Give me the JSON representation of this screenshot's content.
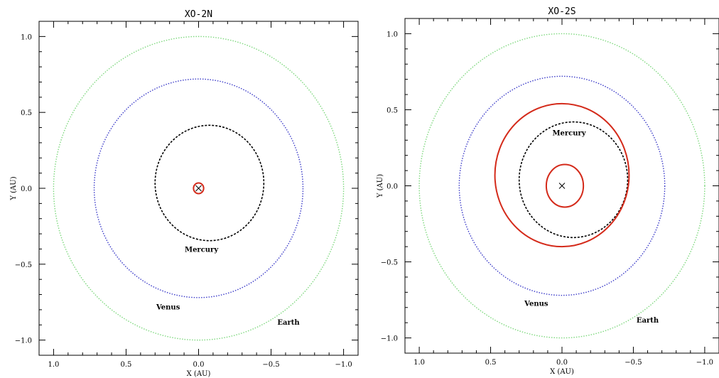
{
  "chart_data": [
    {
      "type": "scatter",
      "title": "XO-2N",
      "xlabel": "X (AU)",
      "ylabel": "Y (AU)",
      "xlim": [
        1.1,
        -1.1
      ],
      "ylim": [
        -1.1,
        1.1
      ],
      "xticks": [
        "1.0",
        "0.5",
        "0.0",
        "−0.5",
        "−1.0"
      ],
      "yticks": [
        "−1.0",
        "−0.5",
        "0.0",
        "0.5",
        "1.0"
      ],
      "star_marker": {
        "x": 0.0,
        "y": 0.0
      },
      "orbits": [
        {
          "name": "Earth",
          "color": "#7ed87e",
          "style": "dotted",
          "cx": 0.0,
          "cy": 0.0,
          "rx": 1.0,
          "ry": 1.0
        },
        {
          "name": "Venus",
          "color": "#3a3ac8",
          "style": "dotted",
          "cx": 0.0,
          "cy": 0.0,
          "rx": 0.72,
          "ry": 0.72
        },
        {
          "name": "Mercury",
          "color": "#000000",
          "style": "dashed",
          "cx": -0.075,
          "cy": 0.035,
          "rx": 0.375,
          "ry": 0.38
        },
        {
          "name": "",
          "color": "#d42a1a",
          "style": "solid",
          "cx": 0.0,
          "cy": 0.0,
          "rx": 0.035,
          "ry": 0.035
        }
      ],
      "labels": [
        {
          "text": "Mercury",
          "x": -0.02,
          "y": -0.4
        },
        {
          "text": "Venus",
          "x": 0.21,
          "y": -0.78
        },
        {
          "text": "Earth",
          "x": -0.62,
          "y": -0.88
        }
      ]
    },
    {
      "type": "scatter",
      "title": "XO-2S",
      "xlabel": "X (AU)",
      "ylabel": "Y (AU)",
      "xlim": [
        1.1,
        -1.1
      ],
      "ylim": [
        -1.1,
        1.1
      ],
      "xticks": [
        "1.0",
        "0.5",
        "0.0",
        "−0.5",
        "−1.0"
      ],
      "yticks": [
        "−1.0",
        "−0.5",
        "0.0",
        "0.5",
        "1.0"
      ],
      "star_marker": {
        "x": 0.0,
        "y": 0.0
      },
      "orbits": [
        {
          "name": "Earth",
          "color": "#7ed87e",
          "style": "dotted",
          "cx": 0.0,
          "cy": 0.0,
          "rx": 1.0,
          "ry": 1.0
        },
        {
          "name": "Venus",
          "color": "#3a3ac8",
          "style": "dotted",
          "cx": 0.0,
          "cy": 0.0,
          "rx": 0.72,
          "ry": 0.72
        },
        {
          "name": "Mercury",
          "color": "#000000",
          "style": "dashed",
          "cx": -0.08,
          "cy": 0.04,
          "rx": 0.38,
          "ry": 0.38
        },
        {
          "name": "",
          "color": "#d42a1a",
          "style": "solid",
          "cx": 0.0,
          "cy": 0.07,
          "rx": 0.47,
          "ry": 0.47
        },
        {
          "name": "",
          "color": "#d42a1a",
          "style": "solid",
          "cx": -0.02,
          "cy": 0.0,
          "rx": 0.13,
          "ry": 0.14
        }
      ],
      "labels": [
        {
          "text": "Mercury",
          "x": -0.05,
          "y": 0.35
        },
        {
          "text": "Venus",
          "x": 0.18,
          "y": -0.77
        },
        {
          "text": "Earth",
          "x": -0.6,
          "y": -0.88
        }
      ]
    }
  ]
}
